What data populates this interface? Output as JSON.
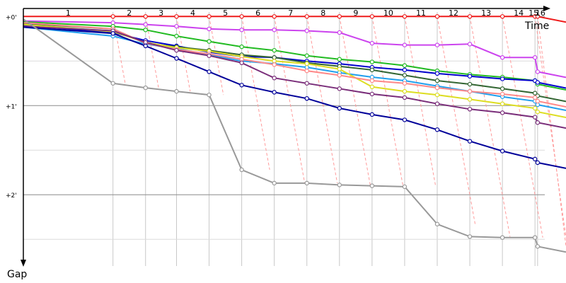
{
  "chart_data": {
    "type": "line",
    "xlabel": "Time",
    "ylabel": "Gap",
    "x_ticks": [
      "1",
      "2",
      "3",
      "4",
      "5",
      "6",
      "7",
      "8",
      "9",
      "10",
      "11",
      "12",
      "13",
      "14",
      "15",
      "16"
    ],
    "y_ticks": [
      "+0'",
      "+1'",
      "+2'"
    ],
    "x_range": [
      0,
      16
    ],
    "y_range_minutes": [
      -0.05,
      2.8
    ],
    "y_reversed": true,
    "grid": true,
    "lap_end_times_min": [
      0,
      2.75,
      3.75,
      4.7,
      5.7,
      6.7,
      7.7,
      8.7,
      9.7,
      10.7,
      11.7,
      12.7,
      13.7,
      14.7,
      15.7,
      15.78
    ],
    "series": [
      {
        "color": "#ee1c1c",
        "values": [
          0,
          0,
          0,
          0,
          0,
          0,
          0,
          0,
          0,
          0,
          0,
          0,
          0,
          0,
          0,
          0
        ]
      },
      {
        "color": "#cc44ee",
        "values": [
          0.05,
          0.07,
          0.09,
          0.11,
          0.14,
          0.15,
          0.15,
          0.16,
          0.18,
          0.3,
          0.32,
          0.32,
          0.31,
          0.46,
          0.46,
          0.62
        ]
      },
      {
        "color": "#22bb22",
        "values": [
          0.06,
          0.11,
          0.15,
          0.22,
          0.28,
          0.34,
          0.38,
          0.44,
          0.48,
          0.51,
          0.55,
          0.61,
          0.65,
          0.68,
          0.72,
          0.76
        ]
      },
      {
        "color": "#0000cc",
        "values": [
          0.1,
          0.18,
          0.27,
          0.33,
          0.4,
          0.45,
          0.46,
          0.5,
          0.53,
          0.57,
          0.6,
          0.64,
          0.67,
          0.7,
          0.72,
          0.74
        ]
      },
      {
        "color": "#336633",
        "values": [
          0.08,
          0.14,
          0.3,
          0.34,
          0.38,
          0.43,
          0.46,
          0.52,
          0.56,
          0.6,
          0.66,
          0.72,
          0.76,
          0.81,
          0.86,
          0.89
        ]
      },
      {
        "color": "#22a0ee",
        "values": [
          0.12,
          0.22,
          0.31,
          0.36,
          0.43,
          0.5,
          0.53,
          0.57,
          0.63,
          0.68,
          0.72,
          0.78,
          0.84,
          0.9,
          0.95,
          0.99
        ]
      },
      {
        "color": "#dddd22",
        "values": [
          0.09,
          0.17,
          0.29,
          0.35,
          0.39,
          0.45,
          0.5,
          0.53,
          0.59,
          0.79,
          0.84,
          0.88,
          0.93,
          0.98,
          1.03,
          1.07
        ]
      },
      {
        "color": "#ff8888",
        "values": [
          0.07,
          0.14,
          0.3,
          0.37,
          0.42,
          0.48,
          0.54,
          0.61,
          0.66,
          0.72,
          0.75,
          0.8,
          0.84,
          0.87,
          0.91,
          0.95
        ]
      },
      {
        "color": "#7a2e7a",
        "values": [
          0.11,
          0.16,
          0.29,
          0.38,
          0.44,
          0.52,
          0.69,
          0.75,
          0.81,
          0.87,
          0.91,
          0.98,
          1.04,
          1.08,
          1.13,
          1.19
        ]
      },
      {
        "color": "#000099",
        "values": [
          0.12,
          0.19,
          0.33,
          0.47,
          0.62,
          0.77,
          0.85,
          0.92,
          1.03,
          1.1,
          1.16,
          1.27,
          1.4,
          1.51,
          1.6,
          1.64
        ]
      },
      {
        "color": "#999999",
        "values": [
          0.03,
          0.75,
          0.8,
          0.84,
          0.88,
          1.72,
          1.87,
          1.87,
          1.89,
          1.9,
          1.91,
          2.33,
          2.47,
          2.48,
          2.48,
          2.58
        ]
      }
    ]
  }
}
